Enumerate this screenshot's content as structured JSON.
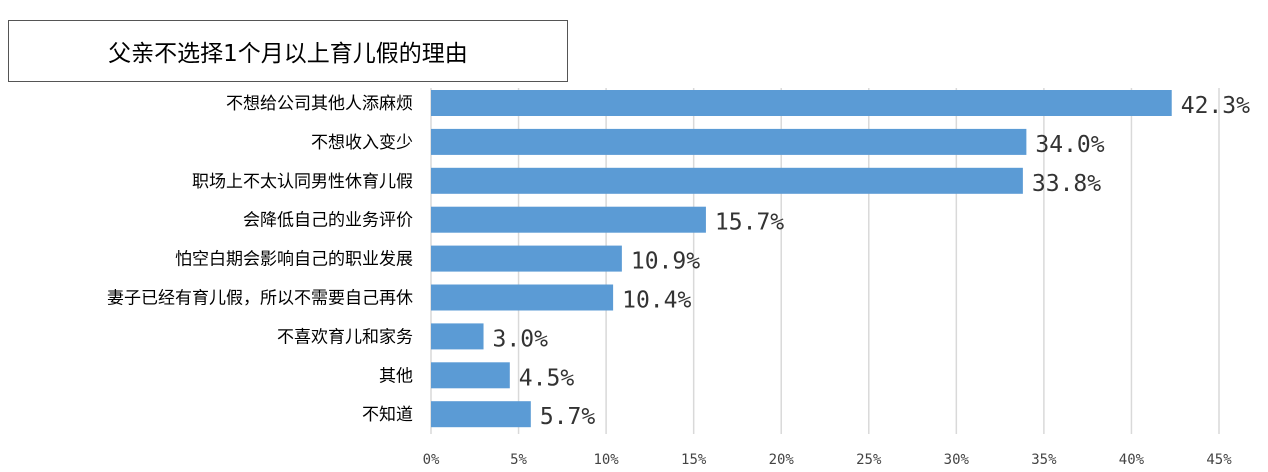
{
  "chart_data": {
    "type": "bar",
    "orientation": "horizontal",
    "title": "父亲不选择1个月以上育儿假的理由",
    "categories": [
      "不想给公司其他人添麻烦",
      "不想收入变少",
      "职场上不太认同男性休育儿假",
      "会降低自己的业务评价",
      "怕空白期会影响自己的职业发展",
      "妻子已经有育儿假，所以不需要自己再休",
      "不喜欢育儿和家务",
      "其他",
      "不知道"
    ],
    "values": [
      42.3,
      34.0,
      33.8,
      15.7,
      10.9,
      10.4,
      3.0,
      4.5,
      5.7
    ],
    "value_labels": [
      "42.3%",
      "34.0%",
      "33.8%",
      "15.7%",
      "10.9%",
      "10.4%",
      "3.0%",
      "4.5%",
      "5.7%"
    ],
    "xlim": [
      0,
      45
    ],
    "xticks": [
      "0%",
      "5%",
      "10%",
      "15%",
      "20%",
      "25%",
      "30%",
      "35%",
      "40%",
      "45%"
    ],
    "grid": true,
    "bar_color": "#5b9bd5",
    "xlabel": "",
    "ylabel": ""
  }
}
